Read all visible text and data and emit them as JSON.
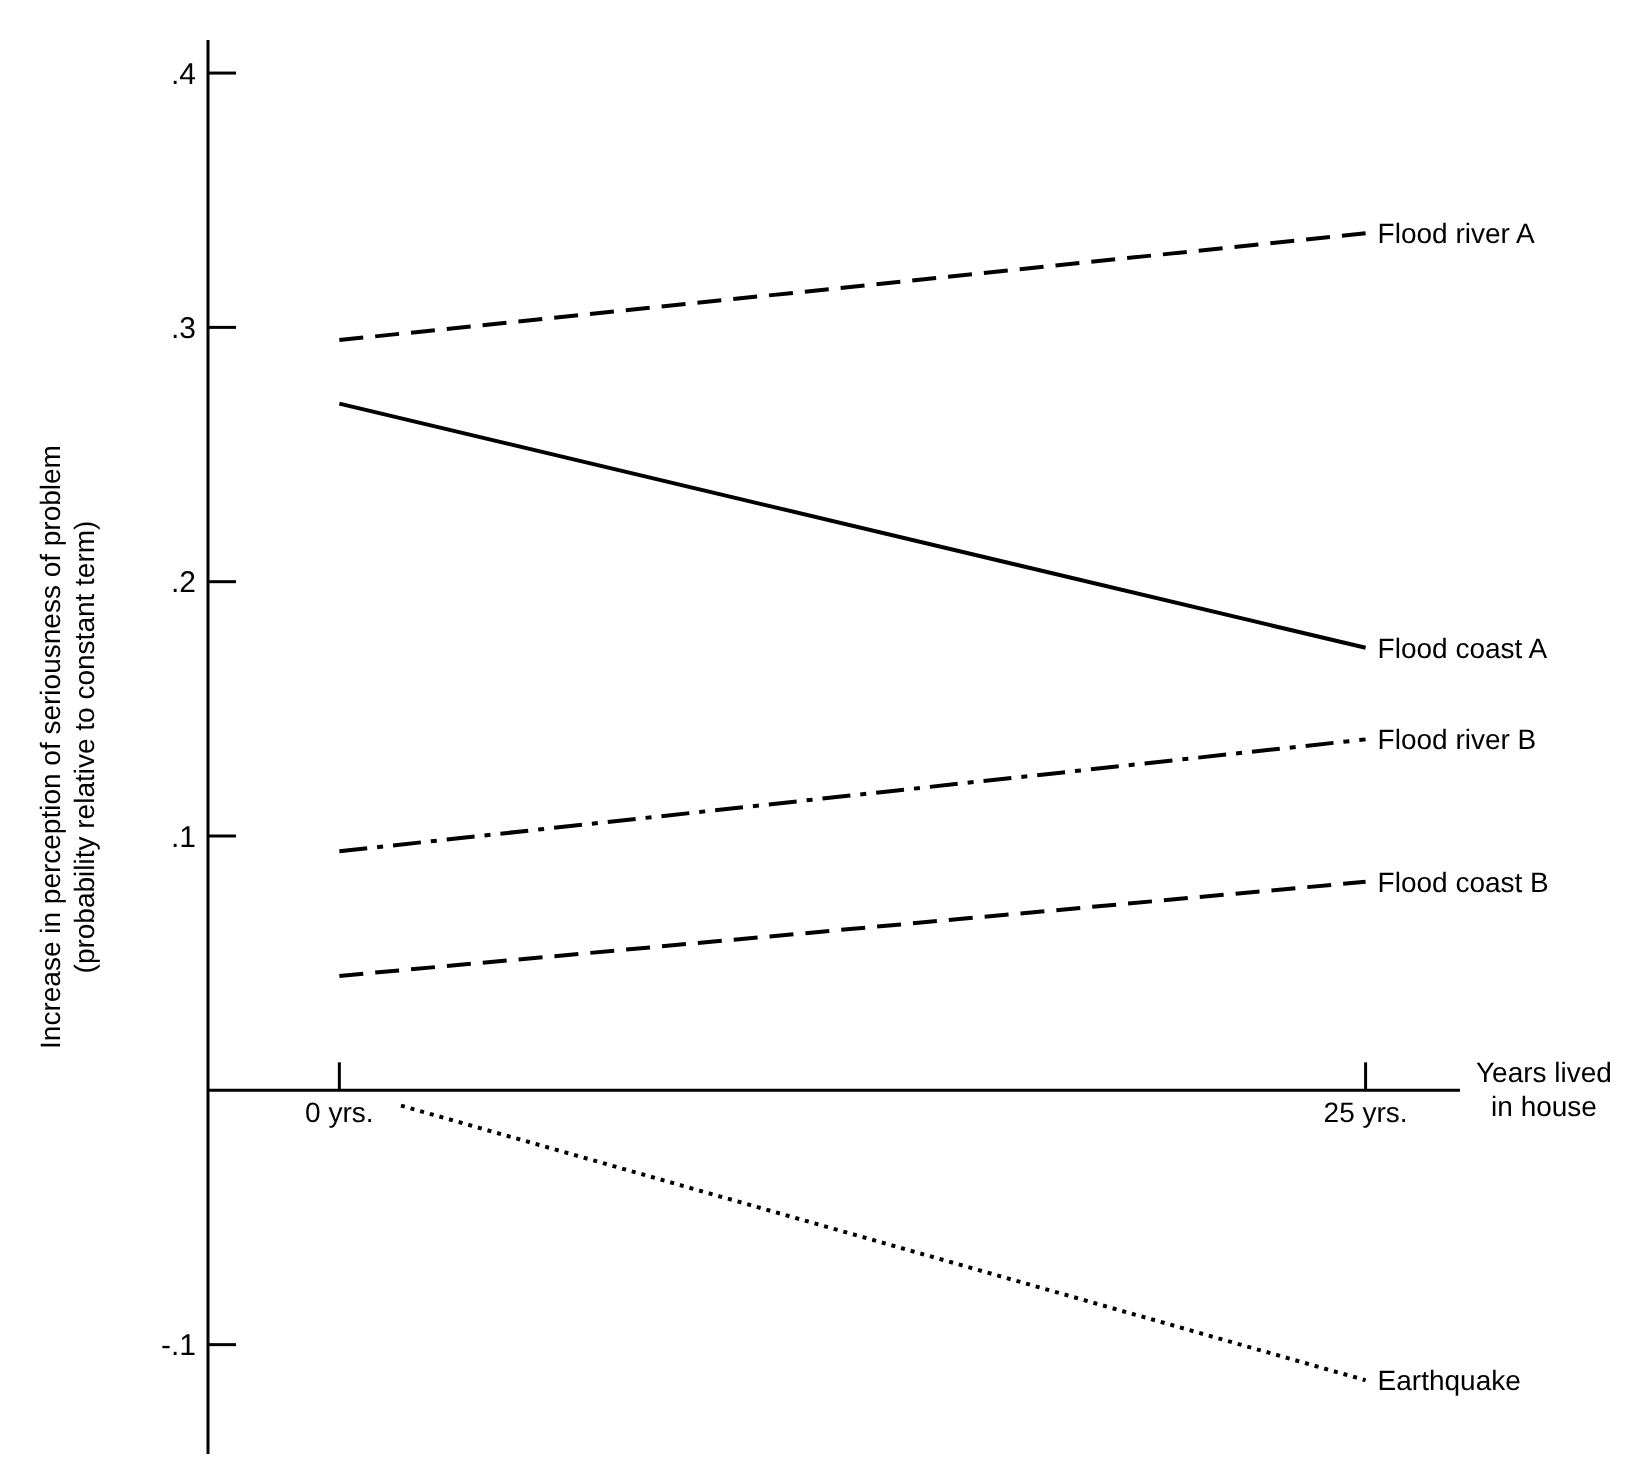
{
  "chart_data": {
    "type": "line",
    "xlabel": "Years lived\nin house",
    "ylabel": "Increase in perception of seriousness of problem\n(probability relative to constant term)",
    "x": [
      0,
      25
    ],
    "xlim": [
      -3.2,
      27.3
    ],
    "xticks": [
      {
        "value": 0,
        "label": "0 yrs."
      },
      {
        "value": 25,
        "label": "25 yrs."
      }
    ],
    "ylim": [
      -0.143,
      0.413
    ],
    "yticks": [
      {
        "value": -0.1,
        "label": "-.1"
      },
      {
        "value": 0.1,
        "label": ".1"
      },
      {
        "value": 0.2,
        "label": ".2"
      },
      {
        "value": 0.3,
        "label": ".3"
      },
      {
        "value": 0.4,
        "label": ".4"
      }
    ],
    "grid": false,
    "marker": "none",
    "series": [
      {
        "name": "Flood river A",
        "color": "#000000",
        "line_style": "dashed",
        "values": [
          0.295,
          0.337
        ]
      },
      {
        "name": "Flood coast A",
        "color": "#000000",
        "line_style": "solid",
        "values": [
          0.27,
          0.174
        ]
      },
      {
        "name": "Flood river B",
        "color": "#000000",
        "line_style": "dashdot",
        "values": [
          0.094,
          0.138
        ]
      },
      {
        "name": "Flood coast B",
        "color": "#000000",
        "line_style": "dashed",
        "values": [
          0.045,
          0.082
        ]
      },
      {
        "name": "Earthquake",
        "color": "#000000",
        "line_style": "dotted",
        "x": [
          1.5,
          25
        ],
        "values": [
          -0.006,
          -0.114
        ]
      }
    ]
  }
}
